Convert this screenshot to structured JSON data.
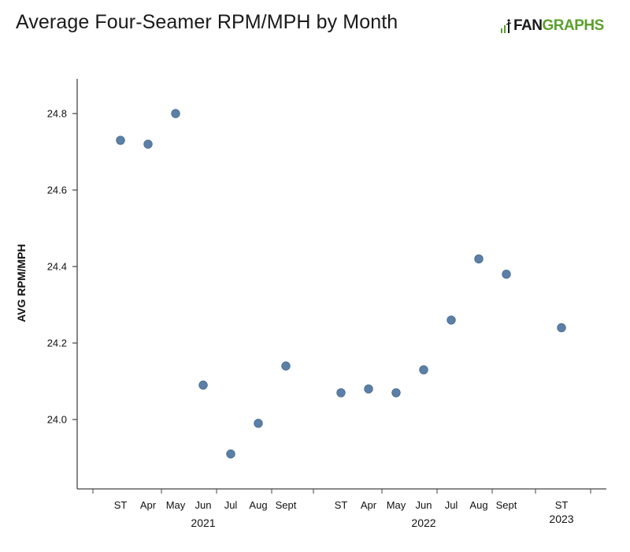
{
  "title": "Average Four-Seamer RPM/MPH by Month",
  "logo": {
    "fan": "FAN",
    "graphs": "GRAPHS",
    "mark_icon": "fangraphs-logo-icon"
  },
  "colors": {
    "point": "#5b80a8",
    "point_stroke": "#48688c",
    "axis": "#444444",
    "logo_green": "#5aa02c"
  },
  "chart_data": {
    "type": "scatter",
    "title": "Average Four-Seamer RPM/MPH by Month",
    "xlabel": "",
    "ylabel": "AVG RPM/MPH",
    "ylim": [
      23.84,
      24.89
    ],
    "yticks": [
      24.0,
      24.2,
      24.4,
      24.6,
      24.8
    ],
    "ytick_labels": [
      "24.0",
      "24.2",
      "24.4",
      "24.6",
      "24.8"
    ],
    "grid": false,
    "groups": [
      {
        "label": "2021",
        "categories": [
          "ST",
          "Apr",
          "May",
          "Jun",
          "Jul",
          "Aug",
          "Sept"
        ],
        "values": [
          24.73,
          24.72,
          24.8,
          24.09,
          23.91,
          23.99,
          24.14
        ]
      },
      {
        "label": "2022",
        "categories": [
          "ST",
          "Apr",
          "May",
          "Jun",
          "Jul",
          "Aug",
          "Sept"
        ],
        "values": [
          24.07,
          24.08,
          24.07,
          24.13,
          24.26,
          24.42,
          24.38
        ]
      },
      {
        "label": "2023",
        "categories": [
          "ST"
        ],
        "values": [
          24.24
        ]
      }
    ]
  }
}
